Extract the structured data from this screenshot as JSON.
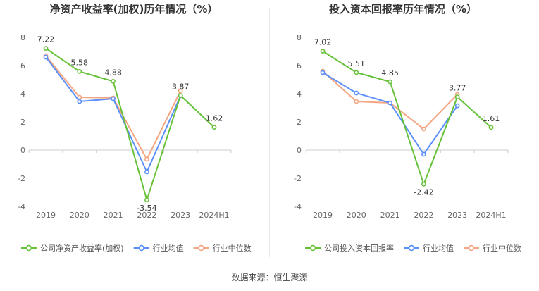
{
  "source_text": "数据来源：恒生聚源",
  "colors": {
    "company": "#67c23a",
    "avg": "#5b8ff9",
    "median": "#f4a582"
  },
  "chart_data": [
    {
      "type": "line",
      "title": "净资产收益率(加权)历年情况（%）",
      "categories": [
        "2019",
        "2020",
        "2021",
        "2022",
        "2023",
        "2024H1"
      ],
      "ylim": [
        -4,
        8
      ],
      "yticks": [
        "8",
        "6",
        "4",
        "2",
        "0",
        "-2",
        "-4"
      ],
      "ytick_values": [
        8,
        6,
        4,
        2,
        0,
        -2,
        -4
      ],
      "grid": false,
      "legend_position": "bottom",
      "series": [
        {
          "name": "公司净资产收益率(加权)",
          "key": "company",
          "values": [
            7.22,
            5.58,
            4.88,
            -3.54,
            3.87,
            1.62
          ],
          "labels": [
            "7.22",
            "5.58",
            "4.88",
            "-3.54",
            "3.87",
            "1.62"
          ]
        },
        {
          "name": "行业均值",
          "key": "avg",
          "values": [
            6.6,
            3.45,
            3.65,
            -1.55,
            3.85,
            null
          ]
        },
        {
          "name": "行业中位数",
          "key": "median",
          "values": [
            6.7,
            3.75,
            3.7,
            -0.65,
            4.2,
            null
          ]
        }
      ]
    },
    {
      "type": "line",
      "title": "投入资本回报率历年情况（%）",
      "categories": [
        "2019",
        "2020",
        "2021",
        "2022",
        "2023",
        "2024H1"
      ],
      "ylim": [
        -4,
        8
      ],
      "yticks": [
        "8",
        "6",
        "4",
        "2",
        "0",
        "-2",
        "-4"
      ],
      "ytick_values": [
        8,
        6,
        4,
        2,
        0,
        -2,
        -4
      ],
      "grid": false,
      "legend_position": "bottom",
      "series": [
        {
          "name": "公司投入资本回报率",
          "key": "company",
          "values": [
            7.02,
            5.51,
            4.85,
            -2.42,
            3.77,
            1.61
          ],
          "labels": [
            "7.02",
            "5.51",
            "4.85",
            "-2.42",
            "3.77",
            "1.61"
          ]
        },
        {
          "name": "行业均值",
          "key": "avg",
          "values": [
            5.5,
            4.05,
            3.35,
            -0.3,
            3.15,
            null
          ]
        },
        {
          "name": "行业中位数",
          "key": "median",
          "values": [
            5.6,
            3.45,
            3.35,
            1.5,
            3.95,
            null
          ]
        }
      ]
    }
  ]
}
